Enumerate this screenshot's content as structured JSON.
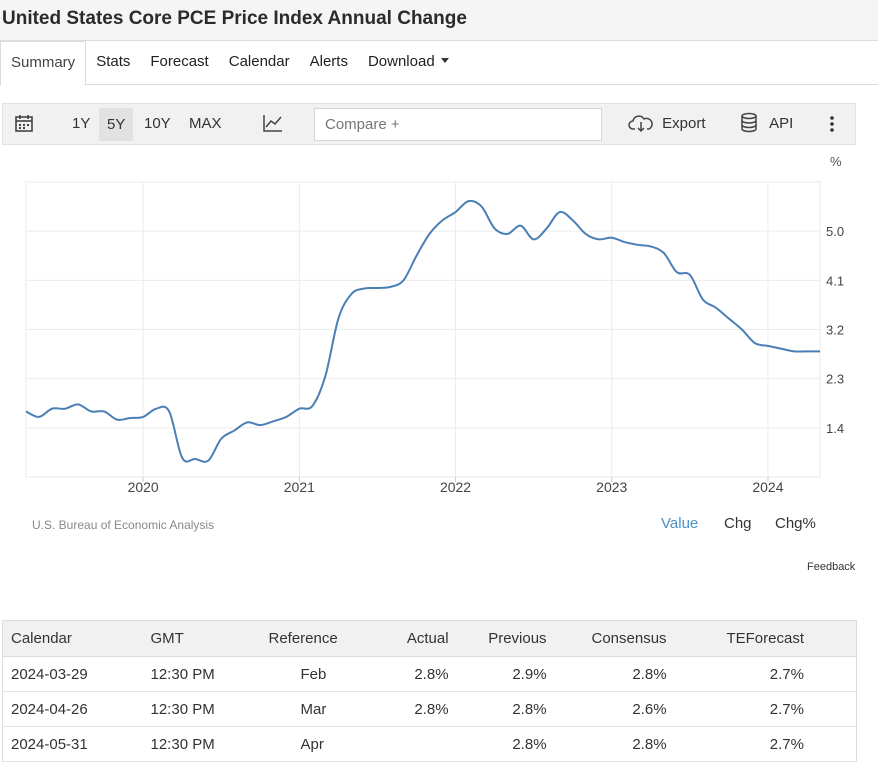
{
  "page": {
    "title": "United States Core PCE Price Index Annual Change"
  },
  "tabs": [
    {
      "label": "Summary",
      "active": true
    },
    {
      "label": "Stats"
    },
    {
      "label": "Forecast"
    },
    {
      "label": "Calendar"
    },
    {
      "label": "Alerts"
    },
    {
      "label": "Download"
    }
  ],
  "toolbar": {
    "calendar_icon": "calendar-icon",
    "ranges": [
      "1Y",
      "5Y",
      "10Y",
      "MAX"
    ],
    "active_range": "5Y",
    "chart_type_icon": "line-chart-icon",
    "compare_placeholder": "Compare +",
    "export_label": "Export",
    "export_icon": "cloud-download-icon",
    "api_label": "API",
    "api_icon": "database-icon",
    "more_icon": "vertical-ellipsis-icon"
  },
  "chart_footer": {
    "source": "U.S. Bureau of Economic Analysis",
    "modes": [
      "Value",
      "Chg",
      "Chg%"
    ],
    "active_mode": "Value",
    "feedback": "Feedback"
  },
  "chart_data": {
    "type": "line",
    "unit_label": "%",
    "x_ticks": [
      "2020",
      "2021",
      "2022",
      "2023",
      "2024"
    ],
    "y_ticks": [
      "1.4",
      "2.3",
      "3.2",
      "4.1",
      "5.0"
    ],
    "ylim": [
      0.5,
      5.9
    ],
    "xlim": [
      "2019-04",
      "2024-05"
    ],
    "grid": true,
    "line_color": "#4a7fb5",
    "series": [
      {
        "x": [
          "2019-04",
          "2019-05",
          "2019-06",
          "2019-07",
          "2019-08",
          "2019-09",
          "2019-10",
          "2019-11",
          "2019-12",
          "2020-01",
          "2020-02",
          "2020-03",
          "2020-04",
          "2020-05",
          "2020-06",
          "2020-07",
          "2020-08",
          "2020-09",
          "2020-10",
          "2020-11",
          "2020-12",
          "2021-01",
          "2021-02",
          "2021-03",
          "2021-04",
          "2021-05",
          "2021-06",
          "2021-07",
          "2021-08",
          "2021-09",
          "2021-10",
          "2021-11",
          "2021-12",
          "2022-01",
          "2022-02",
          "2022-03",
          "2022-04",
          "2022-05",
          "2022-06",
          "2022-07",
          "2022-08",
          "2022-09",
          "2022-10",
          "2022-11",
          "2022-12",
          "2023-01",
          "2023-02",
          "2023-03",
          "2023-04",
          "2023-05",
          "2023-06",
          "2023-07",
          "2023-08",
          "2023-09",
          "2023-10",
          "2023-11",
          "2023-12",
          "2024-01",
          "2024-02",
          "2024-03",
          "2024-04",
          "2024-05"
        ],
        "y": [
          1.7,
          1.6,
          1.75,
          1.75,
          1.83,
          1.7,
          1.7,
          1.55,
          1.58,
          1.6,
          1.75,
          1.7,
          0.85,
          0.83,
          0.8,
          1.2,
          1.35,
          1.5,
          1.45,
          1.52,
          1.6,
          1.75,
          1.8,
          2.35,
          3.4,
          3.85,
          3.95,
          3.96,
          3.98,
          4.1,
          4.55,
          4.95,
          5.2,
          5.35,
          5.55,
          5.45,
          5.05,
          4.95,
          5.1,
          4.85,
          5.05,
          5.35,
          5.2,
          4.95,
          4.85,
          4.88,
          4.8,
          4.75,
          4.72,
          4.6,
          4.25,
          4.2,
          3.75,
          3.6,
          3.4,
          3.2,
          2.95,
          2.9,
          2.85,
          2.8,
          2.8,
          2.8
        ]
      }
    ]
  },
  "calendar_table": {
    "headers": [
      "Calendar",
      "GMT",
      "Reference",
      "Actual",
      "Previous",
      "Consensus",
      "TEForecast"
    ],
    "rows": [
      [
        "2024-03-29",
        "12:30 PM",
        "Feb",
        "2.8%",
        "2.9%",
        "2.8%",
        "2.7%"
      ],
      [
        "2024-04-26",
        "12:30 PM",
        "Mar",
        "2.8%",
        "2.8%",
        "2.6%",
        "2.7%"
      ],
      [
        "2024-05-31",
        "12:30 PM",
        "Apr",
        "",
        "2.8%",
        "2.8%",
        "2.7%"
      ]
    ]
  }
}
